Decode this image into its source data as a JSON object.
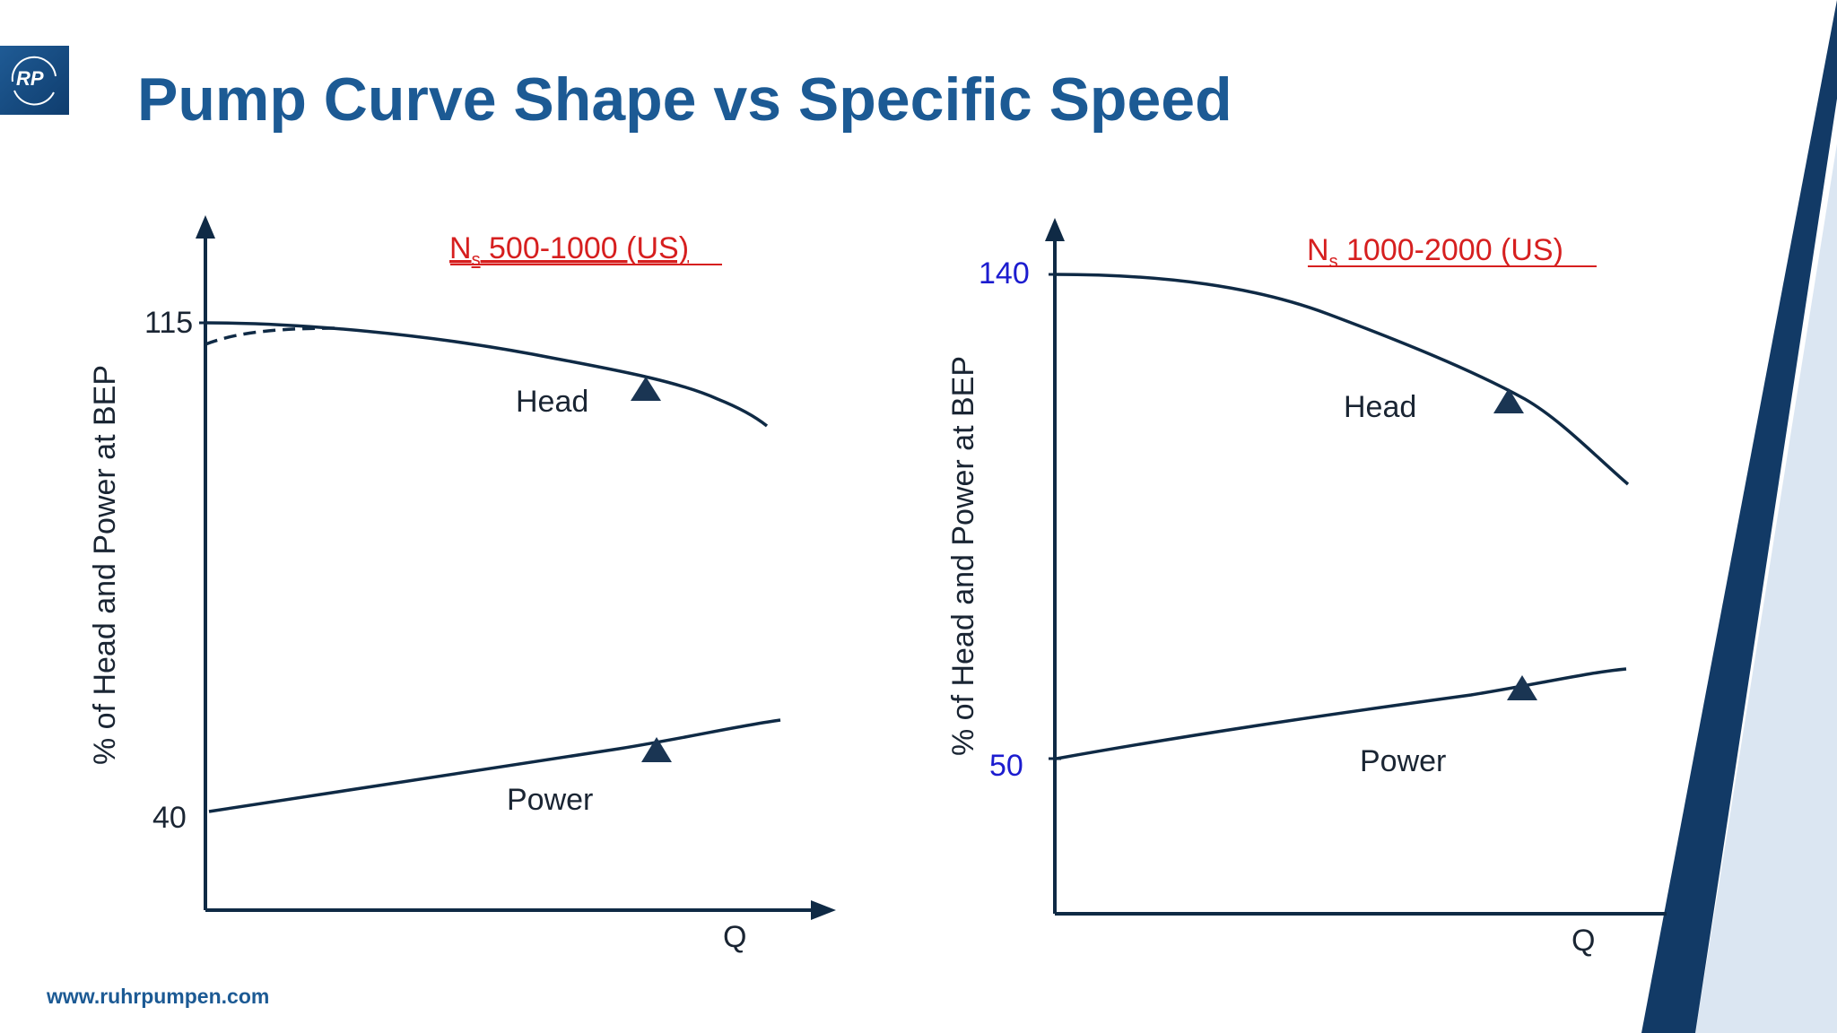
{
  "slide": {
    "logo_text": "RP",
    "title": "Pump Curve Shape vs Specific Speed",
    "footer_url": "www.ruhrpumpen.com"
  },
  "colors": {
    "title": "#1c5a94",
    "curve": "#0f2a45",
    "ns_label": "#d61f1f",
    "right_ticks": "#1c1ccf",
    "band_light": "#dbe6f2",
    "band_dark": "#123a66"
  },
  "charts": [
    {
      "ns_label_main": "N",
      "ns_label_sub": "s",
      "ns_label_rest": " 500-1000 (US)",
      "ylabel": "% of Head and Power at BEP",
      "xlabel": "Q",
      "tick_top": "115",
      "tick_bottom": "40",
      "head_label": "Head",
      "power_label": "Power"
    },
    {
      "ns_label_main": "N",
      "ns_label_sub": "s",
      "ns_label_rest": " 1000-2000 (US)",
      "ylabel": "% of Head and Power at BEP",
      "xlabel": "Q",
      "tick_top": "140",
      "tick_bottom": "50",
      "head_label": "Head",
      "power_label": "Power"
    }
  ]
}
